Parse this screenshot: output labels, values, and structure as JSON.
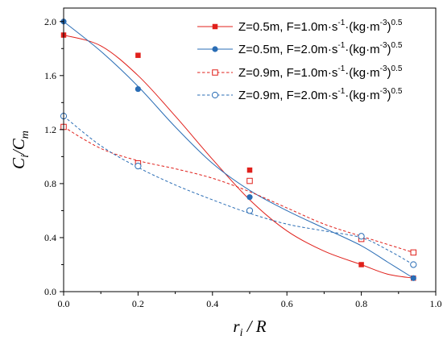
{
  "chart_data": {
    "type": "scatter",
    "xlabel": {
      "main": "r",
      "sub": "i",
      "rest": " / R"
    },
    "ylabel": {
      "main": "C",
      "sub": "i",
      "slash": "/C",
      "sub2": "m"
    },
    "xlim": [
      0,
      1.0
    ],
    "ylim": [
      0,
      2.1
    ],
    "xticks": [
      "0.0",
      "0.2",
      "0.4",
      "0.6",
      "0.8",
      "1.0"
    ],
    "yticks": [
      "0.0",
      "0.4",
      "0.8",
      "1.2",
      "1.6",
      "2.0"
    ],
    "grid": false,
    "legend_position": "top-right",
    "series": [
      {
        "name": {
          "a": "Z=0.5m, F=1.0m·s",
          "b": "·(kg·m",
          "c": ")"
        },
        "color": "#e0201b",
        "marker": "filled-square",
        "line": "solid",
        "x": [
          0.0,
          0.2,
          0.5,
          0.8,
          0.94
        ],
        "y": [
          1.9,
          1.75,
          0.9,
          0.2,
          0.1
        ],
        "fit": [
          [
            0,
            1.9
          ],
          [
            0.1,
            1.82
          ],
          [
            0.2,
            1.6
          ],
          [
            0.3,
            1.3
          ],
          [
            0.4,
            0.98
          ],
          [
            0.5,
            0.68
          ],
          [
            0.6,
            0.45
          ],
          [
            0.7,
            0.3
          ],
          [
            0.8,
            0.2
          ],
          [
            0.87,
            0.13
          ],
          [
            0.94,
            0.1
          ]
        ]
      },
      {
        "name": {
          "a": "Z=0.5m, F=2.0m·s",
          "b": "·(kg·m",
          "c": ")"
        },
        "color": "#2a6db5",
        "marker": "filled-circle",
        "line": "solid",
        "x": [
          0.0,
          0.2,
          0.5,
          0.8,
          0.94
        ],
        "y": [
          2.0,
          1.5,
          0.7,
          0.4,
          0.1
        ],
        "fit": [
          [
            0,
            2.0
          ],
          [
            0.1,
            1.78
          ],
          [
            0.2,
            1.52
          ],
          [
            0.3,
            1.22
          ],
          [
            0.4,
            0.95
          ],
          [
            0.5,
            0.75
          ],
          [
            0.6,
            0.6
          ],
          [
            0.7,
            0.47
          ],
          [
            0.8,
            0.34
          ],
          [
            0.87,
            0.22
          ],
          [
            0.94,
            0.1
          ]
        ]
      },
      {
        "name": {
          "a": "Z=0.9m, F=1.0m·s",
          "b": "·(kg·m",
          "c": ")"
        },
        "color": "#e0201b",
        "marker": "open-square",
        "line": "dashed",
        "x": [
          0.0,
          0.2,
          0.5,
          0.8,
          0.94
        ],
        "y": [
          1.22,
          0.95,
          0.82,
          0.39,
          0.29
        ],
        "fit": [
          [
            0,
            1.22
          ],
          [
            0.1,
            1.06
          ],
          [
            0.2,
            0.97
          ],
          [
            0.3,
            0.91
          ],
          [
            0.4,
            0.84
          ],
          [
            0.5,
            0.74
          ],
          [
            0.6,
            0.62
          ],
          [
            0.7,
            0.5
          ],
          [
            0.8,
            0.41
          ],
          [
            0.87,
            0.35
          ],
          [
            0.94,
            0.29
          ]
        ]
      },
      {
        "name": {
          "a": "Z=0.9m, F=2.0m·s",
          "b": "·(kg·m",
          "c": ")"
        },
        "color": "#2a6db5",
        "marker": "open-circle",
        "line": "dashed",
        "x": [
          0.0,
          0.2,
          0.5,
          0.8,
          0.94
        ],
        "y": [
          1.3,
          0.93,
          0.6,
          0.41,
          0.2
        ],
        "fit": [
          [
            0,
            1.3
          ],
          [
            0.1,
            1.08
          ],
          [
            0.2,
            0.92
          ],
          [
            0.3,
            0.79
          ],
          [
            0.4,
            0.68
          ],
          [
            0.5,
            0.58
          ],
          [
            0.6,
            0.5
          ],
          [
            0.7,
            0.45
          ],
          [
            0.8,
            0.4
          ],
          [
            0.87,
            0.31
          ],
          [
            0.94,
            0.2
          ]
        ]
      }
    ],
    "legend_superscripts": {
      "first": "-1",
      "second": "-3",
      "third": "0.5"
    }
  }
}
